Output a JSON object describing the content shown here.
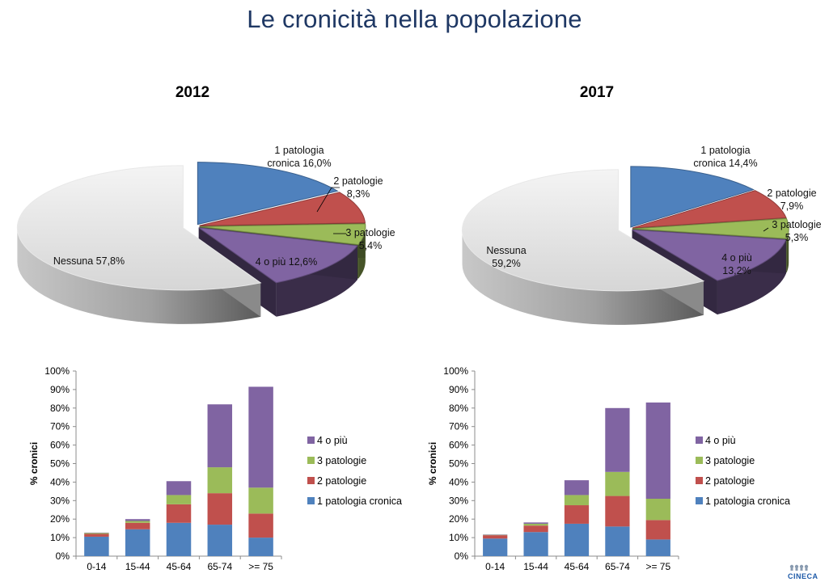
{
  "title": "Le cronicità nella popolazione",
  "logo": "CINECA",
  "colors": {
    "uno": "#4f81bd",
    "due": "#c0504d",
    "tre": "#9bbb59",
    "quattro": "#8064a2",
    "nessuna": "#d9d9d9"
  },
  "chart_data": [
    {
      "type": "pie",
      "title": "2012",
      "slices": [
        {
          "label": "1 patologia cronica",
          "value": 16.0,
          "text": [
            "1 patologia",
            "cronica 16,0%"
          ]
        },
        {
          "label": "2 patologie",
          "value": 8.3,
          "text": [
            "2 patologie",
            "8,3%"
          ]
        },
        {
          "label": "3 patologie",
          "value": 5.4,
          "text": [
            "3 patologie",
            "5,4%"
          ]
        },
        {
          "label": "4 o più",
          "value": 12.6,
          "text": [
            "4 o più 12,6%"
          ]
        },
        {
          "label": "Nessuna",
          "value": 57.8,
          "text": [
            "Nessuna 57,8%"
          ]
        }
      ]
    },
    {
      "type": "pie",
      "title": "2017",
      "slices": [
        {
          "label": "1 patologia cronica",
          "value": 14.4,
          "text": [
            "1 patologia",
            "cronica  14,4%"
          ]
        },
        {
          "label": "2 patologie",
          "value": 7.9,
          "text": [
            "2 patologie",
            "7,9%"
          ]
        },
        {
          "label": "3 patologie",
          "value": 5.3,
          "text": [
            "3 patologie",
            "5,3%"
          ]
        },
        {
          "label": "4 o più",
          "value": 13.2,
          "text": [
            "4 o più",
            "13,2%"
          ]
        },
        {
          "label": "Nessuna",
          "value": 59.2,
          "text": [
            "Nessuna",
            "59,2%"
          ]
        }
      ]
    },
    {
      "type": "bar",
      "stacked": true,
      "categories": [
        "0-14",
        "15-44",
        "45-64",
        "65-74",
        ">= 75"
      ],
      "ylabel": "% cronici",
      "ylim": [
        0,
        100
      ],
      "yticks": [
        "0%",
        "10%",
        "20%",
        "30%",
        "40%",
        "50%",
        "60%",
        "70%",
        "80%",
        "90%",
        "100%"
      ],
      "grid": false,
      "legend": "right",
      "series": [
        {
          "name": "1 patologia cronica",
          "values": [
            10.5,
            14.5,
            18,
            17,
            10
          ]
        },
        {
          "name": "2 patologie",
          "values": [
            1.5,
            3.5,
            10,
            17,
            13
          ]
        },
        {
          "name": "3 patologie",
          "values": [
            0.5,
            1,
            5,
            14,
            14
          ]
        },
        {
          "name": "4 o più",
          "values": [
            0.2,
            1,
            7.5,
            34,
            54.5
          ]
        }
      ]
    },
    {
      "type": "bar",
      "stacked": true,
      "categories": [
        "0-14",
        "15-44",
        "45-64",
        "65-74",
        ">= 75"
      ],
      "ylabel": "% cronici",
      "ylim": [
        0,
        100
      ],
      "yticks": [
        "0%",
        "10%",
        "20%",
        "30%",
        "40%",
        "50%",
        "60%",
        "70%",
        "80%",
        "90%",
        "100%"
      ],
      "grid": false,
      "legend": "right",
      "series": [
        {
          "name": "1 patologia cronica",
          "values": [
            9.5,
            13,
            17.5,
            16,
            9
          ]
        },
        {
          "name": "2 patologie",
          "values": [
            1.8,
            3.5,
            10,
            16.5,
            10.5
          ]
        },
        {
          "name": "3 patologie",
          "values": [
            0.2,
            1,
            5.5,
            13,
            11.5
          ]
        },
        {
          "name": "4 o più",
          "values": [
            0.2,
            0.7,
            8,
            34.5,
            52
          ]
        }
      ]
    }
  ]
}
